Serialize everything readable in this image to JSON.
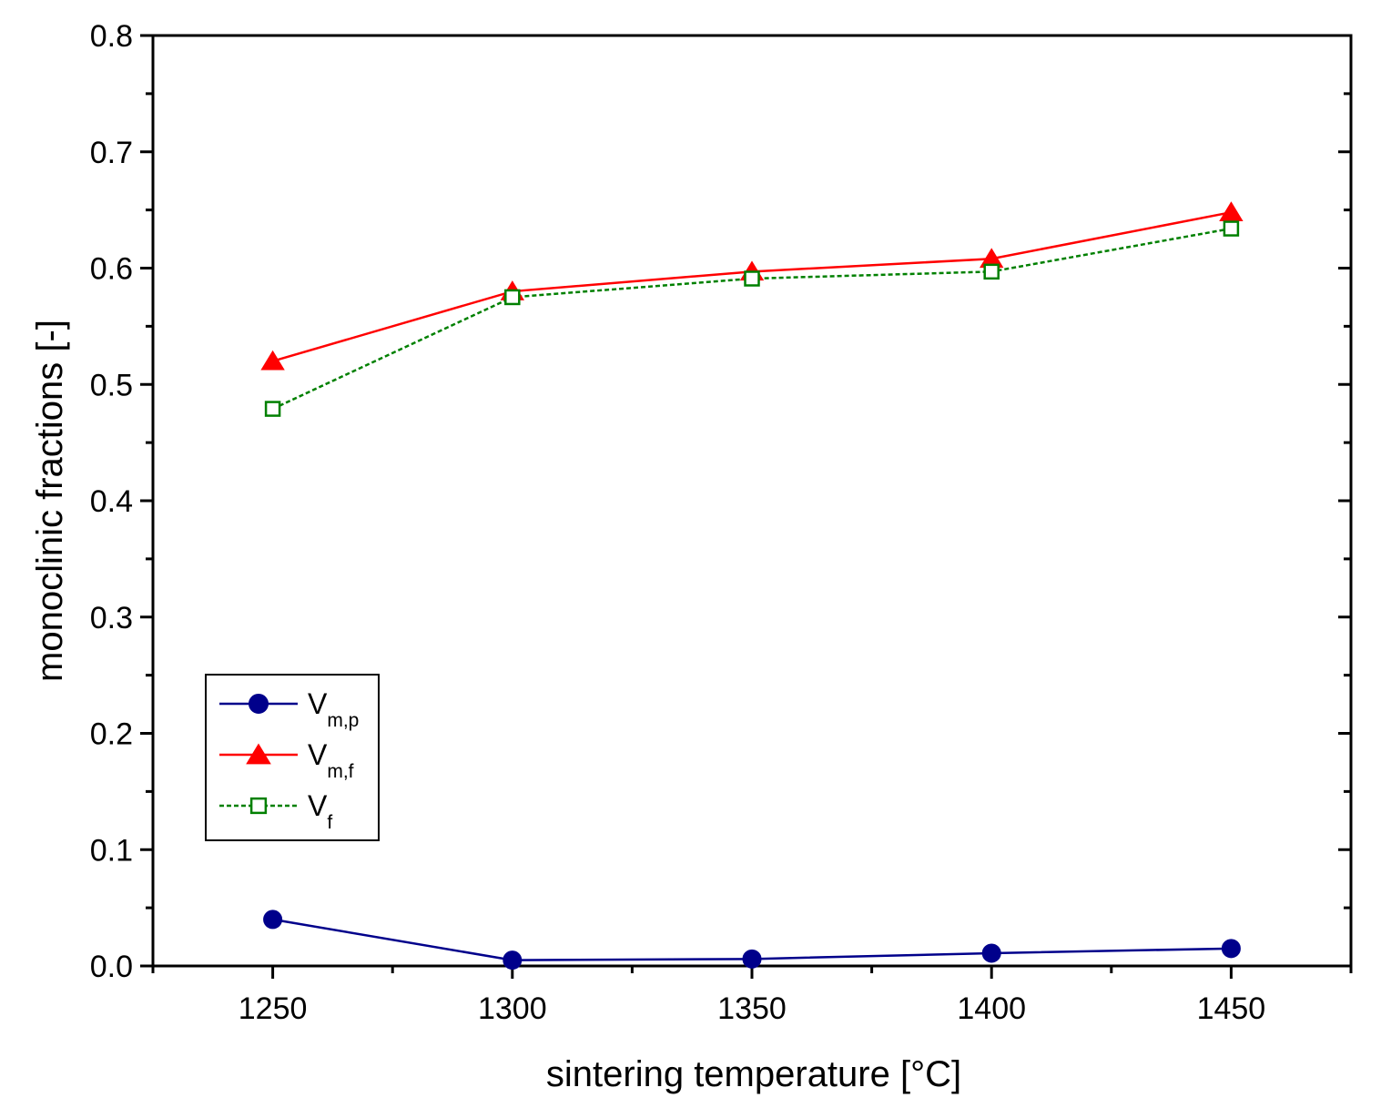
{
  "chart_data": {
    "type": "line",
    "title": "",
    "xlabel": "sintering temperature [°C]",
    "ylabel": "monoclinic fractions [-]",
    "xlim": [
      1225,
      1475
    ],
    "ylim": [
      0.0,
      0.8
    ],
    "x": [
      1250,
      1300,
      1350,
      1400,
      1450
    ],
    "xticks": [
      1250,
      1300,
      1350,
      1400,
      1450
    ],
    "xtick_labels": [
      "1250",
      "1300",
      "1350",
      "1400",
      "1450"
    ],
    "yticks": [
      0.0,
      0.1,
      0.2,
      0.3,
      0.4,
      0.5,
      0.6,
      0.7,
      0.8
    ],
    "ytick_labels": [
      "0.0",
      "0.1",
      "0.2",
      "0.3",
      "0.4",
      "0.5",
      "0.6",
      "0.7",
      "0.8"
    ],
    "grid": false,
    "legend_position": "bottom-left",
    "series": [
      {
        "name": "V",
        "subscript": "m,p",
        "color": "#00008b",
        "marker": "circle",
        "line_style": "solid",
        "values": [
          0.04,
          0.005,
          0.006,
          0.011,
          0.015
        ]
      },
      {
        "name": "V",
        "subscript": "m,f",
        "color": "#ff0000",
        "marker": "triangle",
        "line_style": "solid",
        "values": [
          0.52,
          0.58,
          0.597,
          0.608,
          0.648
        ]
      },
      {
        "name": "V",
        "subscript": "f",
        "color": "#008000",
        "marker": "open-square",
        "line_style": "dotted",
        "values": [
          0.479,
          0.575,
          0.591,
          0.597,
          0.634
        ]
      }
    ]
  }
}
